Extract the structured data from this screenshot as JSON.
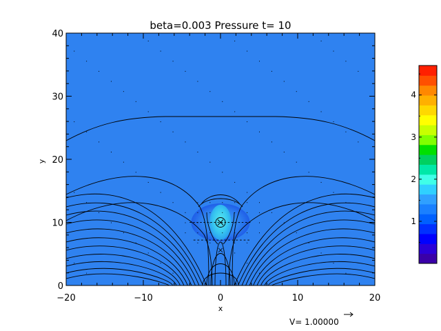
{
  "chart_data": {
    "type": "heatmap",
    "title": "beta=0.003 Pressure t= 10",
    "xlabel": "x",
    "ylabel": "y",
    "xlim": [
      -20,
      20
    ],
    "ylim": [
      0,
      40
    ],
    "x_ticks": [
      -20,
      -10,
      0,
      10,
      20
    ],
    "x_tick_labels": [
      "−20",
      "−10",
      "0",
      "10",
      "20"
    ],
    "y_ticks": [
      0,
      10,
      20,
      30,
      40
    ],
    "y_tick_labels": [
      "0",
      "10",
      "20",
      "30",
      "40"
    ],
    "background_value": 1.0,
    "blob": {
      "center": [
        0,
        10
      ],
      "outer_value": 1.1,
      "inner_value": 1.5,
      "outer_half_width": 3.8,
      "outer_half_height": 3.0,
      "inner_half_width": 1.4,
      "inner_half_height": 2.8
    },
    "contour_lines": "magnetic field lines (black)",
    "vector_reference": {
      "label": "V=  1.00000",
      "value": 1.0
    },
    "colorbar": {
      "min": 0.0,
      "max": 4.7,
      "ticks": [
        1,
        2,
        3,
        4
      ],
      "tick_labels": [
        "1",
        "2",
        "3",
        "4"
      ],
      "colors": [
        "#3a00a8",
        "#2a00d8",
        "#0000ff",
        "#0030ff",
        "#0060ff",
        "#1a80ff",
        "#30a0ff",
        "#30d0ff",
        "#40ffe8",
        "#00e8a8",
        "#00d060",
        "#00e000",
        "#80ff00",
        "#c8ff00",
        "#ffff00",
        "#ffd800",
        "#ffb000",
        "#ff8800",
        "#ff5000",
        "#ff2000"
      ]
    },
    "colors": {
      "background_fill": "#2f82f0",
      "blob_outer": "#1f60e8",
      "blob_mid": "#3aa0f8",
      "blob_inner": "#40d0f0"
    }
  }
}
